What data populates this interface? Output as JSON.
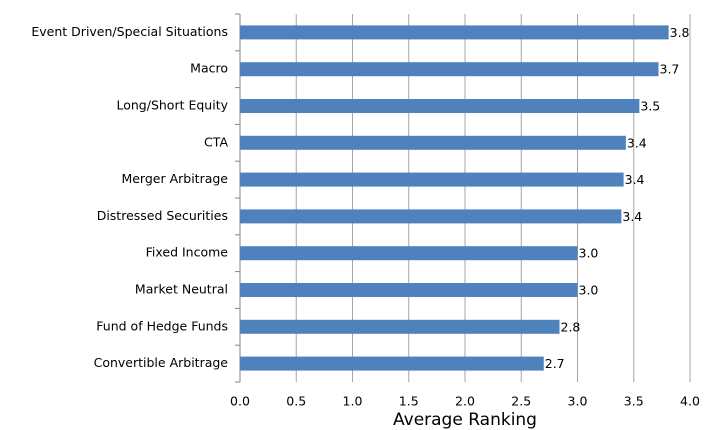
{
  "chart_data": {
    "type": "hbar",
    "xlabel": "Average Ranking",
    "categories": [
      "Event Driven/Special Situations",
      "Macro",
      "Long/Short Equity",
      "CTA",
      "Merger Arbitrage",
      "Distressed Securities",
      "Fixed Income",
      "Market Neutral",
      "Fund of Hedge Funds",
      "Convertible Arbitrage"
    ],
    "values": [
      3.81,
      3.72,
      3.55,
      3.43,
      3.41,
      3.39,
      3.0,
      3.0,
      2.84,
      2.7
    ],
    "value_labels": [
      "3.8",
      "3.7",
      "3.5",
      "3.4",
      "3.4",
      "3.4",
      "3.0",
      "3.0",
      "2.8",
      "2.7"
    ],
    "color": "#4f81bd",
    "xlim": [
      0,
      4
    ],
    "xticks": [
      {
        "value": 0,
        "label": "0.0"
      },
      {
        "value": 0.5,
        "label": "0.5"
      },
      {
        "value": 1,
        "label": "1.0"
      },
      {
        "value": 1.5,
        "label": "1.5"
      },
      {
        "value": 2,
        "label": "2.0"
      },
      {
        "value": 2.5,
        "label": "2.5"
      },
      {
        "value": 3,
        "label": "3.0"
      },
      {
        "value": 3.5,
        "label": "3.5"
      },
      {
        "value": 4,
        "label": "4.0"
      }
    ],
    "grid": true
  }
}
